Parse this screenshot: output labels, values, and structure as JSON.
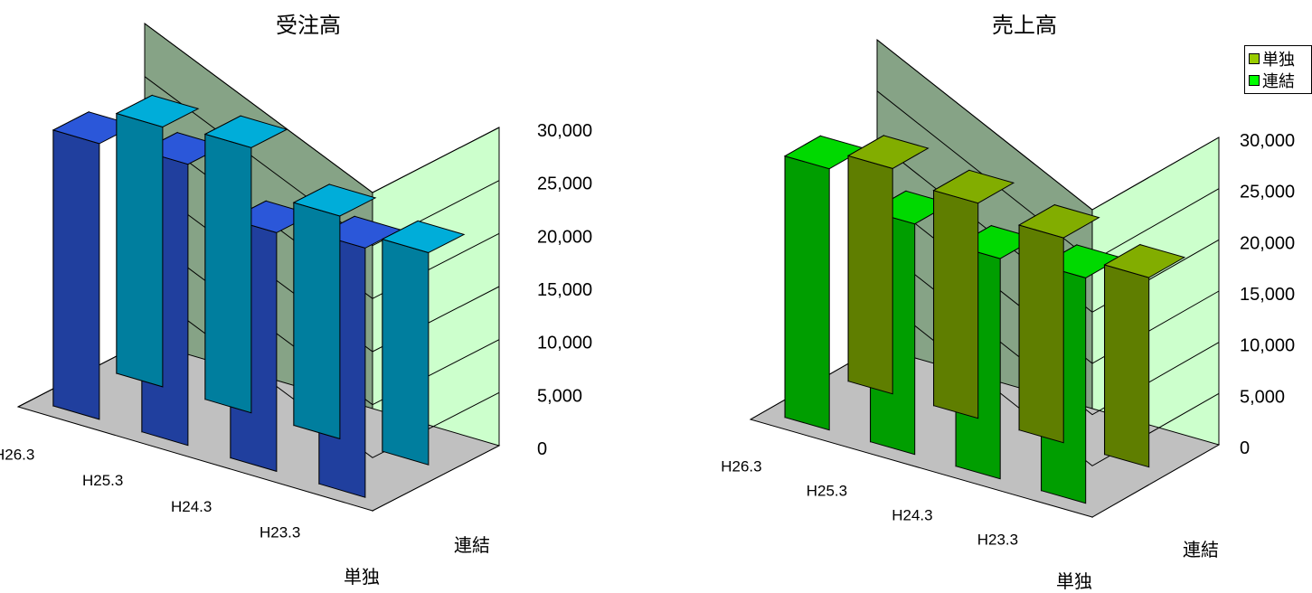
{
  "chart_data": [
    {
      "type": "bar",
      "title": "受注高",
      "categories": [
        "H23.3",
        "H24.3",
        "H25.3",
        "H26.3"
      ],
      "series": [
        {
          "name": "単独",
          "values": [
            20000,
            21000,
            25000,
            24500
          ]
        },
        {
          "name": "連結",
          "values": [
            23500,
            22500,
            26500,
            26000
          ]
        }
      ],
      "ylim": [
        0,
        30000
      ],
      "yticks": [
        "0",
        "5,000",
        "10,000",
        "15,000",
        "20,000",
        "25,000",
        "30,000"
      ],
      "colors": {
        "single": "#00ccff",
        "consolidated": "#3366ff"
      },
      "grid": true
    },
    {
      "type": "bar",
      "title": "売上高",
      "categories": [
        "H23.3",
        "H24.3",
        "H25.3",
        "H26.3"
      ],
      "series": [
        {
          "name": "単独",
          "values": [
            18500,
            20000,
            21000,
            22000
          ]
        },
        {
          "name": "連結",
          "values": [
            22000,
            21500,
            22500,
            25500
          ]
        }
      ],
      "ylim": [
        0,
        30000
      ],
      "yticks": [
        "0",
        "5,000",
        "10,000",
        "15,000",
        "20,000",
        "25,000",
        "30,000"
      ],
      "colors": {
        "single": "#99cc00",
        "consolidated": "#00ff00"
      },
      "grid": true
    }
  ],
  "legend": {
    "items": [
      {
        "label": "単独",
        "color": "#99cc00"
      },
      {
        "label": "連結",
        "color": "#00ff00"
      }
    ]
  }
}
